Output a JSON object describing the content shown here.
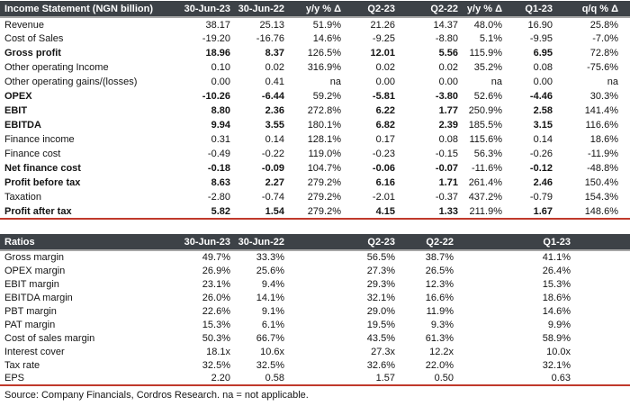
{
  "colors": {
    "header_bg": "#3d4247",
    "header_text": "#ffffff",
    "rule_red": "#c0392b",
    "rule_gray": "#a6a6a6"
  },
  "income_statement": {
    "title": "Income Statement (NGN billion)",
    "columns": [
      "30-Jun-23",
      "30-Jun-22",
      "y/y % Δ",
      "Q2-23",
      "Q2-22",
      "y/y % Δ",
      "Q1-23",
      "q/q % Δ"
    ],
    "rows": [
      {
        "label": "Revenue",
        "bold": false,
        "values": [
          "38.17",
          "25.13",
          "51.9%",
          "21.26",
          "14.37",
          "48.0%",
          "16.90",
          "25.8%"
        ]
      },
      {
        "label": "Cost of Sales",
        "bold": false,
        "values": [
          "-19.20",
          "-16.76",
          "14.6%",
          "-9.25",
          "-8.80",
          "5.1%",
          "-9.95",
          "-7.0%"
        ]
      },
      {
        "label": "Gross profit",
        "bold": true,
        "values": [
          "18.96",
          "8.37",
          "126.5%",
          "12.01",
          "5.56",
          "115.9%",
          "6.95",
          "72.8%"
        ]
      },
      {
        "label": "Other operating Income",
        "bold": false,
        "values": [
          "0.10",
          "0.02",
          "316.9%",
          "0.02",
          "0.02",
          "35.2%",
          "0.08",
          "-75.6%"
        ]
      },
      {
        "label": "Other operating gains/(losses)",
        "bold": false,
        "values": [
          "0.00",
          "0.41",
          "na",
          "0.00",
          "0.00",
          "na",
          "0.00",
          "na"
        ]
      },
      {
        "label": "OPEX",
        "bold": true,
        "values": [
          "-10.26",
          "-6.44",
          "59.2%",
          "-5.81",
          "-3.80",
          "52.6%",
          "-4.46",
          "30.3%"
        ]
      },
      {
        "label": "EBIT",
        "bold": true,
        "values": [
          "8.80",
          "2.36",
          "272.8%",
          "6.22",
          "1.77",
          "250.9%",
          "2.58",
          "141.4%"
        ]
      },
      {
        "label": "EBITDA",
        "bold": true,
        "values": [
          "9.94",
          "3.55",
          "180.1%",
          "6.82",
          "2.39",
          "185.5%",
          "3.15",
          "116.6%"
        ]
      },
      {
        "label": "Finance income",
        "bold": false,
        "values": [
          "0.31",
          "0.14",
          "128.1%",
          "0.17",
          "0.08",
          "115.6%",
          "0.14",
          "18.6%"
        ]
      },
      {
        "label": "Finance cost",
        "bold": false,
        "values": [
          "-0.49",
          "-0.22",
          "119.0%",
          "-0.23",
          "-0.15",
          "56.3%",
          "-0.26",
          "-11.9%"
        ]
      },
      {
        "label": "Net finance cost",
        "bold": true,
        "values": [
          "-0.18",
          "-0.09",
          "104.7%",
          "-0.06",
          "-0.07",
          "-11.6%",
          "-0.12",
          "-48.8%"
        ]
      },
      {
        "label": "Profit before tax",
        "bold": true,
        "values": [
          "8.63",
          "2.27",
          "279.2%",
          "6.16",
          "1.71",
          "261.4%",
          "2.46",
          "150.4%"
        ]
      },
      {
        "label": "Taxation",
        "bold": false,
        "values": [
          "-2.80",
          "-0.74",
          "279.2%",
          "-2.01",
          "-0.37",
          "437.2%",
          "-0.79",
          "154.3%"
        ]
      },
      {
        "label": "Profit after tax",
        "bold": true,
        "values": [
          "5.82",
          "1.54",
          "279.2%",
          "4.15",
          "1.33",
          "211.9%",
          "1.67",
          "148.6%"
        ]
      }
    ]
  },
  "ratios": {
    "title": "Ratios",
    "columns": [
      "30-Jun-23",
      "30-Jun-22",
      "",
      "Q2-23",
      "Q2-22",
      "",
      "Q1-23",
      ""
    ],
    "rows": [
      {
        "label": "Gross margin",
        "bold": false,
        "values": [
          "49.7%",
          "33.3%",
          "",
          "56.5%",
          "38.7%",
          "",
          "41.1%",
          ""
        ]
      },
      {
        "label": "OPEX margin",
        "bold": false,
        "values": [
          "26.9%",
          "25.6%",
          "",
          "27.3%",
          "26.5%",
          "",
          "26.4%",
          ""
        ]
      },
      {
        "label": "EBIT margin",
        "bold": false,
        "values": [
          "23.1%",
          "9.4%",
          "",
          "29.3%",
          "12.3%",
          "",
          "15.3%",
          ""
        ]
      },
      {
        "label": "EBITDA margin",
        "bold": false,
        "values": [
          "26.0%",
          "14.1%",
          "",
          "32.1%",
          "16.6%",
          "",
          "18.6%",
          ""
        ]
      },
      {
        "label": "PBT margin",
        "bold": false,
        "values": [
          "22.6%",
          "9.1%",
          "",
          "29.0%",
          "11.9%",
          "",
          "14.6%",
          ""
        ]
      },
      {
        "label": "PAT margin",
        "bold": false,
        "values": [
          "15.3%",
          "6.1%",
          "",
          "19.5%",
          "9.3%",
          "",
          "9.9%",
          ""
        ]
      },
      {
        "label": "Cost of sales margin",
        "bold": false,
        "values": [
          "50.3%",
          "66.7%",
          "",
          "43.5%",
          "61.3%",
          "",
          "58.9%",
          ""
        ]
      },
      {
        "label": "Interest cover",
        "bold": false,
        "values": [
          "18.1x",
          "10.6x",
          "",
          "27.3x",
          "12.2x",
          "",
          "10.0x",
          ""
        ]
      },
      {
        "label": "Tax rate",
        "bold": false,
        "values": [
          "32.5%",
          "32.5%",
          "",
          "32.6%",
          "22.0%",
          "",
          "32.1%",
          ""
        ]
      },
      {
        "label": "EPS",
        "bold": false,
        "values": [
          "2.20",
          "0.58",
          "",
          "1.57",
          "0.50",
          "",
          "0.63",
          ""
        ]
      }
    ]
  },
  "footer": {
    "source_note": "Source: Company Financials, Cordros Research. na = not applicable."
  }
}
